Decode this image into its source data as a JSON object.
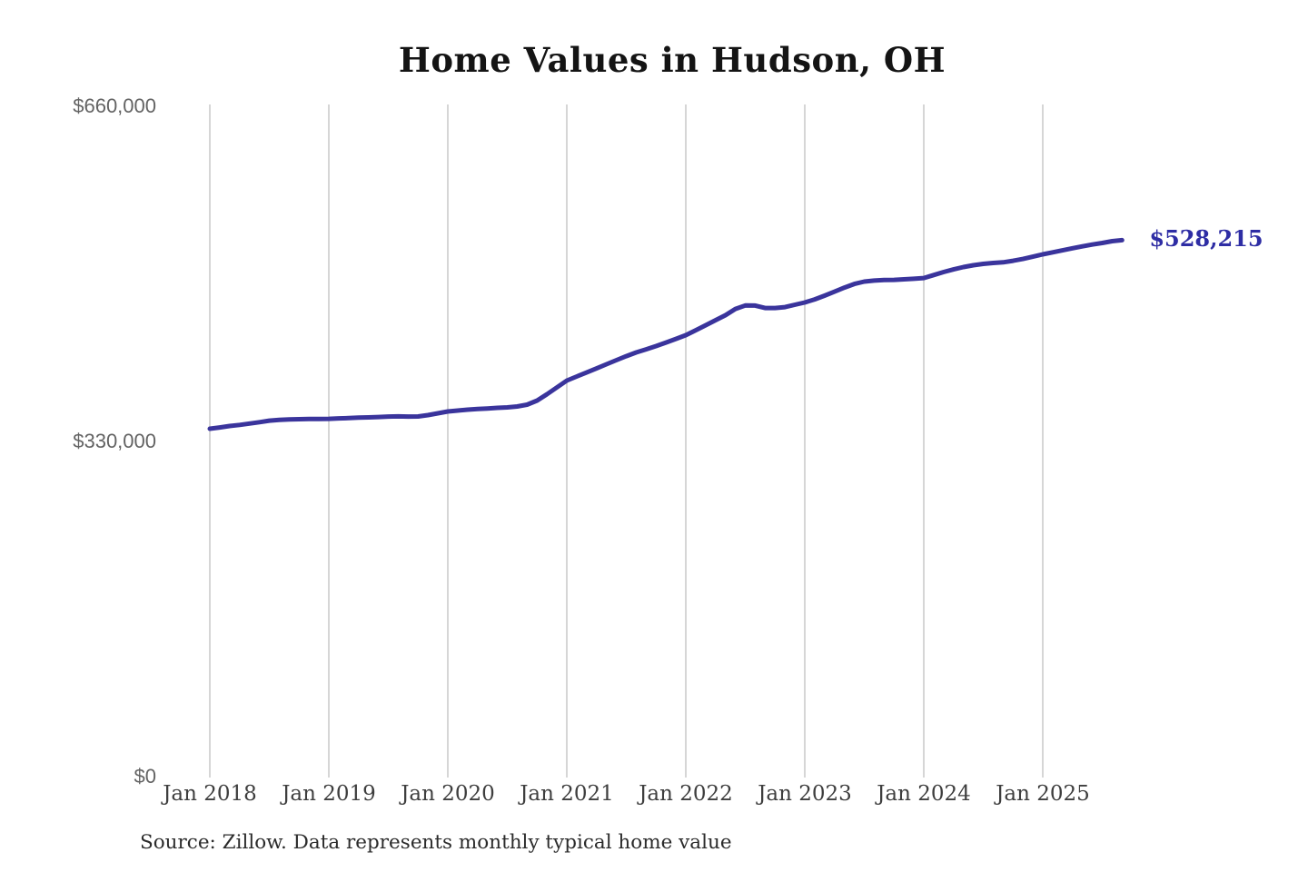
{
  "chart_data": {
    "type": "line",
    "title": "Home Values in Hudson, OH",
    "xlabel": "",
    "ylabel": "",
    "ylim": [
      0,
      660000
    ],
    "grid": "vertical-only",
    "legend_position": "none",
    "end_label": "$528,215",
    "end_value": 528215,
    "colors": {
      "line": "#3a349c",
      "end_label": "#2e2da4",
      "gridline": "#cccccc",
      "title": "#141414",
      "y_tick": "#636363",
      "x_tick": "#3e3e3e"
    },
    "y_ticks": [
      {
        "label": "$660,000",
        "value": 660000
      },
      {
        "label": "$330,000",
        "value": 330000
      },
      {
        "label": "$0",
        "value": 0
      }
    ],
    "x_ticks": [
      {
        "label": "Jan 2018",
        "month_index": 0
      },
      {
        "label": "Jan 2019",
        "month_index": 12
      },
      {
        "label": "Jan 2020",
        "month_index": 24
      },
      {
        "label": "Jan 2021",
        "month_index": 36
      },
      {
        "label": "Jan 2022",
        "month_index": 48
      },
      {
        "label": "Jan 2023",
        "month_index": 60
      },
      {
        "label": "Jan 2024",
        "month_index": 72
      },
      {
        "label": "Jan 2025",
        "month_index": 84
      }
    ],
    "series": [
      {
        "name": "Monthly typical home value",
        "start": "2018-01",
        "frequency": "monthly",
        "values": [
          342500,
          343800,
          345200,
          346300,
          347600,
          349000,
          350500,
          351200,
          351700,
          351900,
          352100,
          352200,
          352300,
          352700,
          353000,
          353400,
          353700,
          354100,
          354500,
          354700,
          354500,
          354600,
          355900,
          357700,
          359500,
          360400,
          361300,
          361900,
          362500,
          363100,
          363500,
          364400,
          366200,
          370200,
          376500,
          383200,
          389900,
          393900,
          397900,
          401900,
          406000,
          410000,
          414000,
          417600,
          420700,
          423900,
          427400,
          431000,
          434600,
          439500,
          444400,
          449400,
          454300,
          460500,
          463900,
          463800,
          461400,
          461400,
          462300,
          464600,
          466800,
          469900,
          473500,
          477500,
          481500,
          485100,
          487400,
          488400,
          489000,
          489100,
          489600,
          490200,
          490900,
          493800,
          496800,
          499400,
          501700,
          503500,
          504800,
          505700,
          506400,
          507900,
          509700,
          511900,
          514200,
          516200,
          518200,
          520200,
          522100,
          523900,
          525400,
          527200,
          528215
        ]
      }
    ]
  },
  "source": "Source: Zillow. Data represents monthly typical home value"
}
